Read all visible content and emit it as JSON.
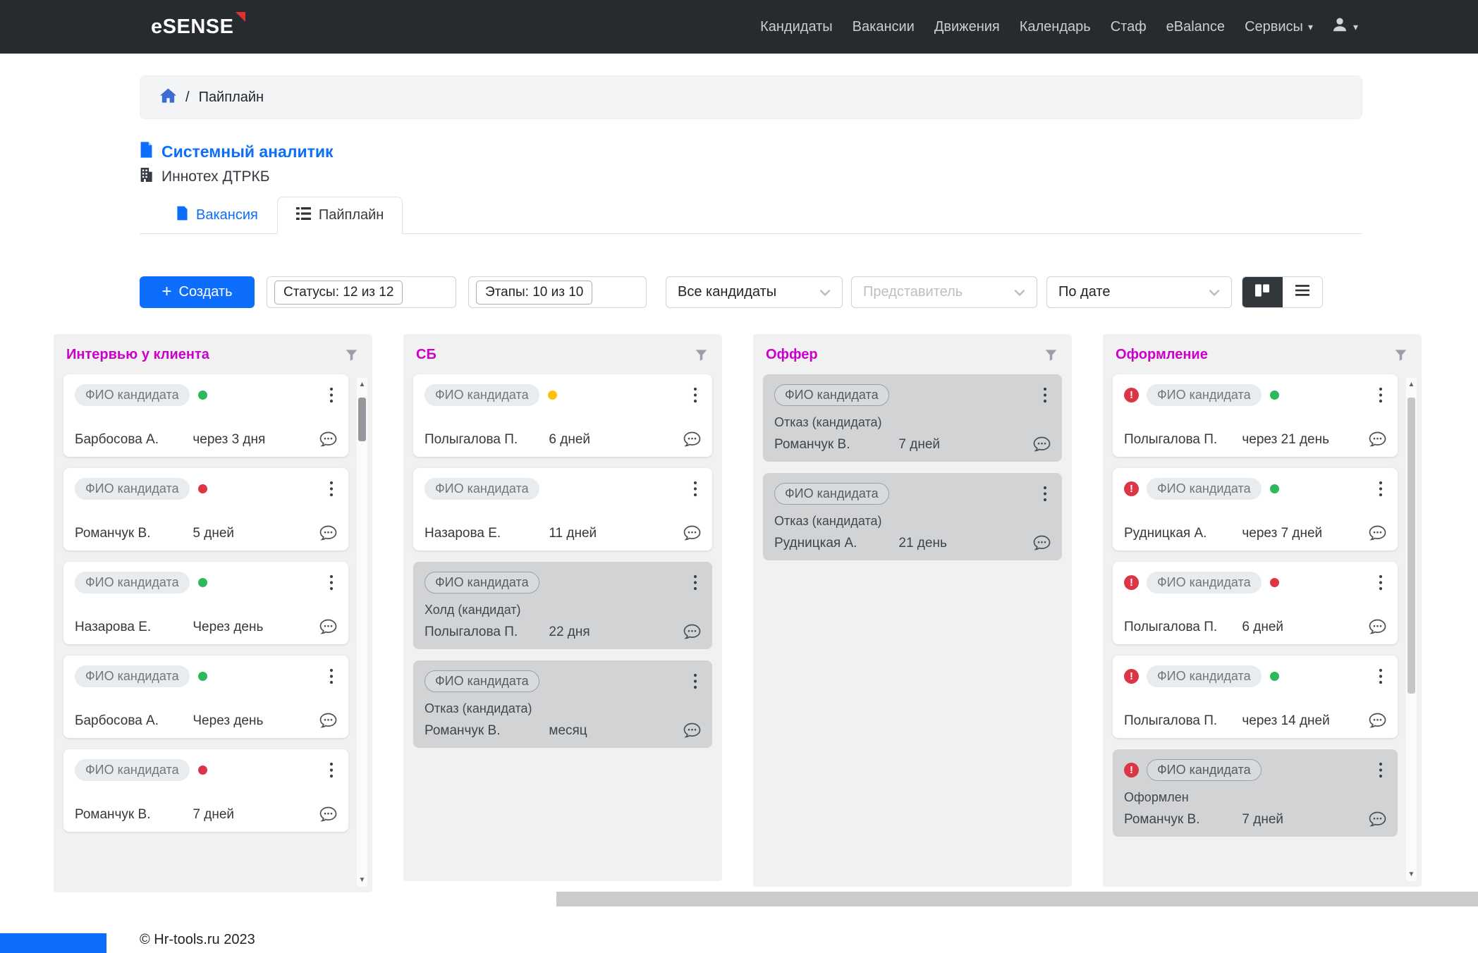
{
  "navbar": {
    "logo": "eSENSE",
    "items": [
      {
        "id": "candidates",
        "label": "Кандидаты"
      },
      {
        "id": "vacancies",
        "label": "Вакансии"
      },
      {
        "id": "movements",
        "label": "Движения"
      },
      {
        "id": "calendar",
        "label": "Календарь"
      },
      {
        "id": "staff",
        "label": "Стаф"
      },
      {
        "id": "ebalance",
        "label": "eBalance"
      },
      {
        "id": "services",
        "label": "Сервисы",
        "dropdown": true
      }
    ]
  },
  "breadcrumb": {
    "separator": "/",
    "current": "Пайплайн"
  },
  "vacancy": {
    "title": "Системный аналитик",
    "company": "Иннотех ДТРКБ"
  },
  "tabs": [
    {
      "label": "Вакансия",
      "active": false
    },
    {
      "label": "Пайплайн",
      "active": true
    }
  ],
  "toolbar": {
    "create_label": "Создать",
    "statuses_label": "Статусы: 12 из 12",
    "stages_label": "Этапы: 10 из 10",
    "candidates_filter": "Все кандидаты",
    "representative_placeholder": "Представитель",
    "sort_label": "По дате"
  },
  "board": {
    "card_pill": "ФИО кандидата",
    "columns": [
      {
        "title": "Интервью у клиента",
        "scrollable": true,
        "cards": [
          {
            "name": "Барбосова А.",
            "time": "через 3 дня",
            "dot": "green"
          },
          {
            "name": "Романчук В.",
            "time": "5 дней",
            "dot": "red"
          },
          {
            "name": "Назарова Е.",
            "time": "Через день",
            "dot": "green"
          },
          {
            "name": "Барбосова А.",
            "time": "Через день",
            "dot": "green"
          },
          {
            "name": "Романчук В.",
            "time": "7 дней",
            "dot": "red"
          }
        ]
      },
      {
        "title": "СБ",
        "scrollable": false,
        "cards": [
          {
            "name": "Полыгалова П.",
            "time": "6 дней",
            "dot": "yellow"
          },
          {
            "name": "Назарова Е.",
            "time": "11 дней"
          },
          {
            "name": "Полыгалова П.",
            "time": "22 дня",
            "status": "Холд (кандидат)",
            "muted": true
          },
          {
            "name": "Романчук В.",
            "time": "месяц",
            "status": "Отказ (кандидата)",
            "muted": true
          }
        ]
      },
      {
        "title": "Оффер",
        "scrollable": false,
        "cards": [
          {
            "name": "Романчук В.",
            "time": "7 дней",
            "status": "Отказ (кандидата)",
            "muted": true
          },
          {
            "name": "Рудницкая А.",
            "time": "21 день",
            "status": "Отказ (кандидата)",
            "muted": true
          }
        ]
      },
      {
        "title": "Оформление",
        "scrollable": true,
        "cards": [
          {
            "name": "Полыгалова П.",
            "time": "через 21 день",
            "dot": "green",
            "alert": true
          },
          {
            "name": "Рудницкая А.",
            "time": "через 7 дней",
            "dot": "green",
            "alert": true
          },
          {
            "name": "Полыгалова П.",
            "time": "6 дней",
            "dot": "red",
            "alert": true
          },
          {
            "name": "Полыгалова П.",
            "time": "через 14 дней",
            "dot": "green",
            "alert": true
          },
          {
            "name": "Романчук В.",
            "time": "7 дней",
            "status": "Оформлен",
            "muted": true,
            "alert": true
          }
        ]
      }
    ]
  },
  "footer": {
    "copyright": "© Hr-tools.ru 2023"
  },
  "colors": {
    "accent": "#0d6efd",
    "column_title": "#cc00cc",
    "muted_card": "#d2d3d5",
    "dots": {
      "green": "#2eb85c",
      "red": "#dc3545",
      "yellow": "#ffc107"
    }
  }
}
